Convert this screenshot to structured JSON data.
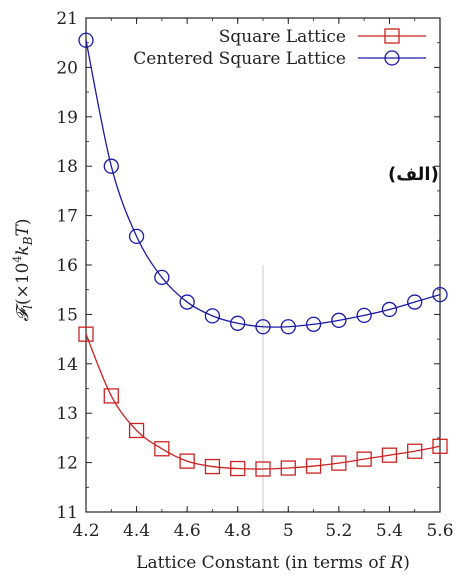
{
  "chart_data": {
    "type": "line",
    "xlabel": "Lattice Constant (in terms of R)",
    "ylabel": "𝓕ₗ(×10⁴k_BT)",
    "xlim": [
      4.2,
      5.6
    ],
    "ylim": [
      11,
      21
    ],
    "x_ticks": [
      "4.2",
      "4.4",
      "4.6",
      "4.8",
      "5",
      "5.2",
      "5.4",
      "5.6"
    ],
    "y_ticks": [
      "11",
      "12",
      "13",
      "14",
      "15",
      "16",
      "17",
      "18",
      "19",
      "20",
      "21"
    ],
    "grid": false,
    "legend_position": "top-right",
    "annotation": "(الف)",
    "reference_line_x": 4.9,
    "series": [
      {
        "name": "Square Lattice",
        "color": "#cc2222",
        "marker": "square",
        "x": [
          4.2,
          4.3,
          4.4,
          4.5,
          4.6,
          4.7,
          4.8,
          4.9,
          5.0,
          5.1,
          5.2,
          5.3,
          5.4,
          5.5,
          5.6
        ],
        "values": [
          14.6,
          13.35,
          12.65,
          12.28,
          12.03,
          11.92,
          11.88,
          11.87,
          11.89,
          11.93,
          11.99,
          12.07,
          12.15,
          12.23,
          12.33
        ]
      },
      {
        "name": "Centered Square Lattice",
        "color": "#1a1aa6",
        "marker": "circle",
        "x": [
          4.2,
          4.3,
          4.4,
          4.5,
          4.6,
          4.7,
          4.8,
          4.9,
          5.0,
          5.1,
          5.2,
          5.3,
          5.4,
          5.5,
          5.6
        ],
        "values": [
          20.55,
          18.0,
          16.58,
          15.75,
          15.25,
          14.97,
          14.82,
          14.75,
          14.75,
          14.8,
          14.88,
          14.98,
          15.1,
          15.25,
          15.4
        ]
      }
    ]
  }
}
